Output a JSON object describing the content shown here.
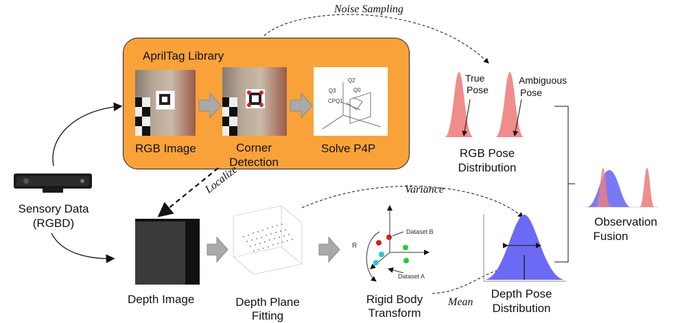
{
  "apriltag": {
    "title": "AprilTag Library",
    "box_color": "#F9A23A",
    "steps": [
      {
        "label": "RGB Image"
      },
      {
        "label": "Corner Detection"
      },
      {
        "label": "Solve P4P"
      }
    ],
    "p4p_labels": {
      "q3": "Q3",
      "q2": "Q2",
      "q0": "Q0",
      "cpq1": "CPQ1"
    }
  },
  "sensor": {
    "label_line1": "Sensory Data",
    "label_line2": "(RGBD)"
  },
  "depth": {
    "image_label": "Depth Image",
    "plane_label_line1": "Depth Plane",
    "plane_label_line2": "Fitting"
  },
  "rigid": {
    "label_line1": "Rigid Body",
    "label_line2": "Transform",
    "dataset_b": "Dataset B",
    "dataset_a": "Dataset A",
    "rotation": "R"
  },
  "rgb_pose": {
    "true_pose_line1": "True",
    "true_pose_line2": "Pose",
    "ambiguous_line1": "Ambiguous",
    "ambiguous_line2": "Pose",
    "label_line1": "RGB Pose",
    "label_line2": "Distribution",
    "color": "#F08080"
  },
  "depth_pose": {
    "label_line1": "Depth Pose",
    "label_line2": "Distribution",
    "color": "#6A6AF5"
  },
  "fusion": {
    "label_line1": "Observation",
    "label_line2": "Fusion"
  },
  "annotations": {
    "noise_sampling": "Noise Sampling",
    "localize": "Localize",
    "variance": "Variance",
    "mean": "Mean"
  }
}
